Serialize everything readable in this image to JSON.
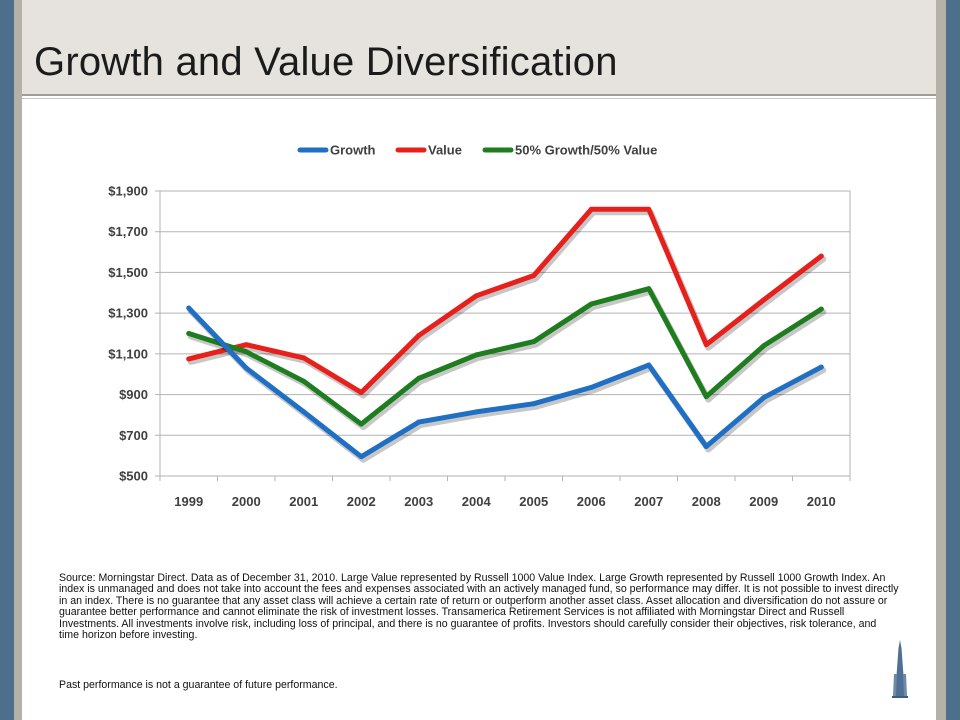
{
  "slide": {
    "title": "Growth and Value Diversification",
    "source_note": "Source: Morningstar Direct. Data as of December 31, 2010. Large Value represented by Russell 1000 Value Index. Large Growth represented by Russell 1000 Growth Index. An index is unmanaged and does not take into account the fees and expenses associated with an actively managed fund, so performance may differ. It is not possible to invest directly in an index. There is no guarantee that any asset class will achieve a certain rate of return or outperform another asset class. Asset allocation and diversification do not assure or guarantee better performance and cannot eliminate the risk of investment losses. Transamerica Retirement Services is not affiliated with Morningstar Direct and Russell Investments. All investments involve risk, including loss of principal, and there is no guarantee of profits. Investors should carefully consider their objectives, risk tolerance, and time horizon before investing.",
    "past_performance": "Past performance is not a guarantee of future performance."
  },
  "chart_data": {
    "type": "line",
    "title": "",
    "xlabel": "",
    "ylabel": "",
    "categories": [
      "1999",
      "2000",
      "2001",
      "2002",
      "2003",
      "2004",
      "2005",
      "2006",
      "2007",
      "2008",
      "2009",
      "2010"
    ],
    "ylim": [
      500,
      1900
    ],
    "yticks": [
      500,
      700,
      900,
      1100,
      1300,
      1500,
      1700,
      1900
    ],
    "ytick_labels": [
      "$500",
      "$700",
      "$900",
      "$1,100",
      "$1,300",
      "$1,500",
      "$1,700",
      "$1,900"
    ],
    "grid": true,
    "legend_position": "top-center",
    "series": [
      {
        "name": "Growth",
        "color": "#1f6fc5",
        "values": [
          1325,
          1030,
          815,
          595,
          765,
          815,
          855,
          935,
          1045,
          645,
          885,
          1035
        ]
      },
      {
        "name": "Value",
        "color": "#e8201c",
        "values": [
          1075,
          1145,
          1080,
          910,
          1190,
          1385,
          1485,
          1810,
          1810,
          1145,
          1365,
          1580
        ]
      },
      {
        "name": "50% Growth/50% Value",
        "color": "#1e7d1e",
        "values": [
          1200,
          1110,
          965,
          755,
          980,
          1095,
          1160,
          1345,
          1420,
          890,
          1140,
          1320
        ]
      }
    ]
  }
}
